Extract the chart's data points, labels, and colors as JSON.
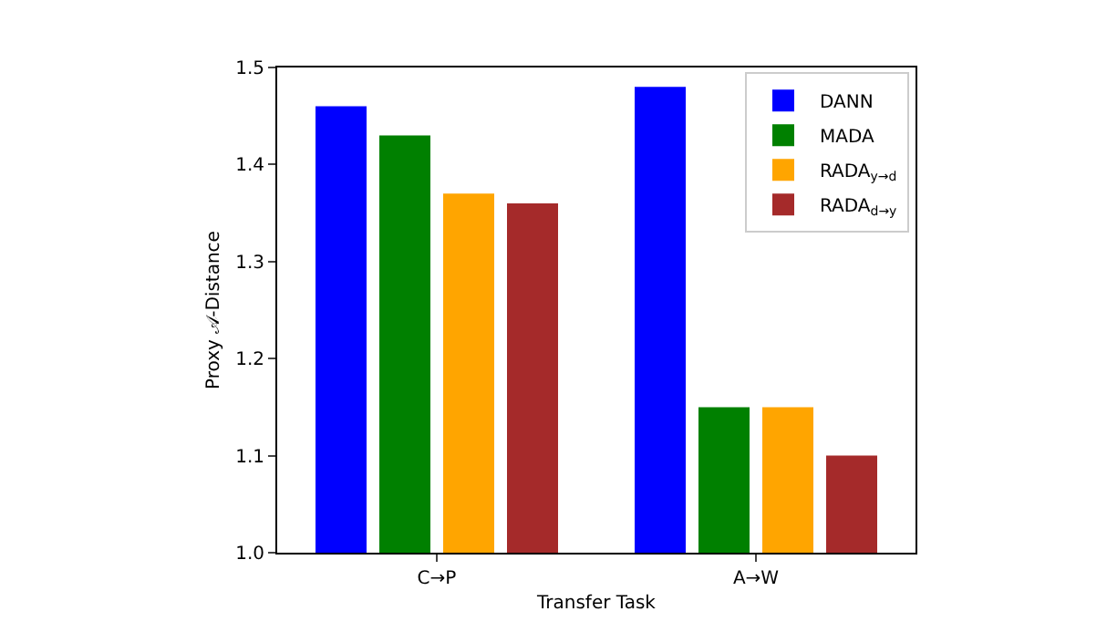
{
  "chart_data": {
    "type": "bar",
    "xlabel": "Transfer Task",
    "ylabel": "Proxy 𝒜-Distance",
    "categories": [
      "C→P",
      "A→W"
    ],
    "series": [
      {
        "name": "DANN",
        "color": "#0000ff",
        "values": [
          1.46,
          1.48
        ]
      },
      {
        "name": "MADA",
        "color": "#008000",
        "values": [
          1.43,
          1.15
        ]
      },
      {
        "name": "RADA$_{y→d}$",
        "color": "#ffa500",
        "values": [
          1.37,
          1.15
        ]
      },
      {
        "name": "RADA$_{d→y}$",
        "color": "#a52a2a",
        "values": [
          1.36,
          1.1
        ]
      }
    ],
    "ylim": [
      1.0,
      1.5
    ],
    "yticks": [
      {
        "value": 1,
        "label": "1.0"
      },
      1.1,
      1.2,
      1.3,
      1.4,
      {
        "value": 1.5,
        "label": "1.5"
      }
    ],
    "grid": false,
    "legend": "top right"
  }
}
